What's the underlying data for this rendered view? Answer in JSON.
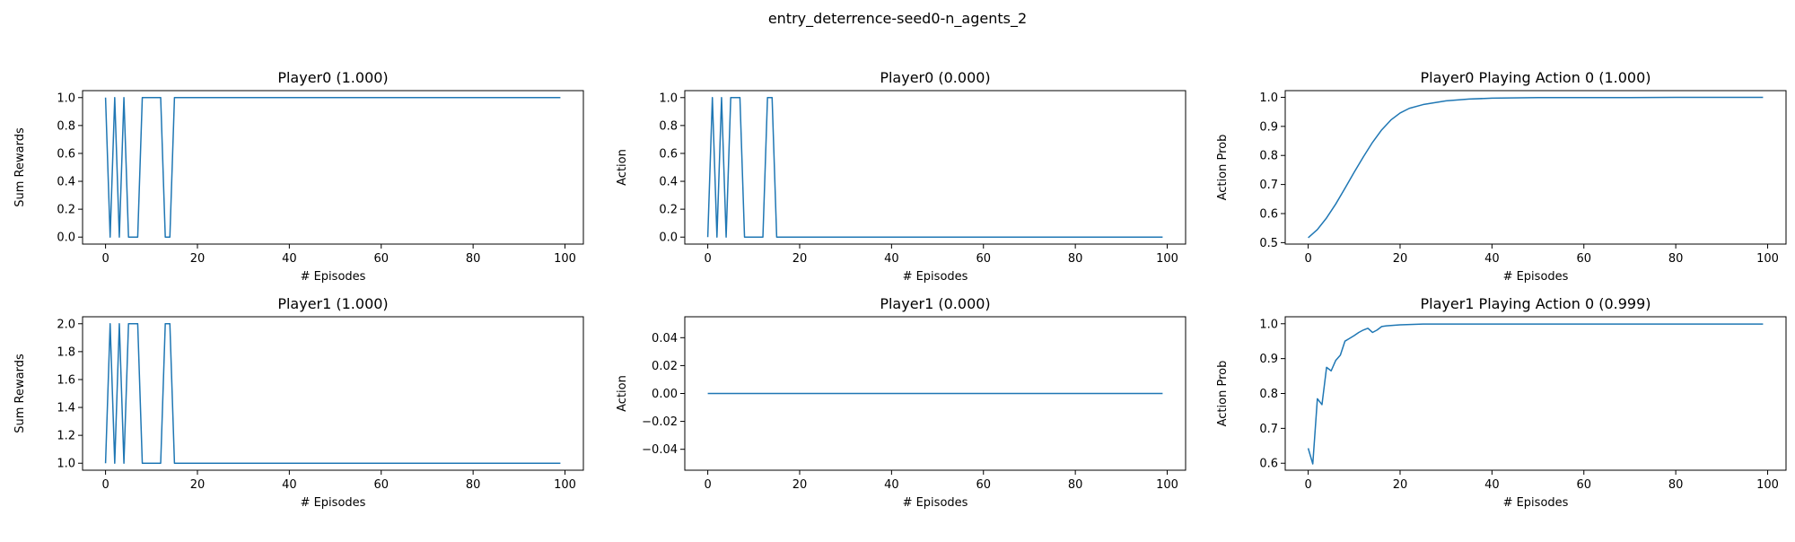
{
  "figure": {
    "title": "entry_deterrence-seed0-n_agents_2"
  },
  "colors": {
    "line": "#1f77b4",
    "axes": "#000000",
    "background": "#ffffff"
  },
  "chart_data": [
    {
      "type": "line",
      "title": "Player0 (1.000)",
      "xlabel": "# Episodes",
      "ylabel": "Sum Rewards",
      "xlim": [
        -5,
        104
      ],
      "ylim": [
        -0.05,
        1.05
      ],
      "xticks": [
        0,
        20,
        40,
        60,
        80,
        100
      ],
      "yticks": [
        0.0,
        0.2,
        0.4,
        0.6,
        0.8,
        1.0
      ],
      "ytick_labels": [
        "0.0",
        "0.2",
        "0.4",
        "0.6",
        "0.8",
        "1.0"
      ],
      "series": [
        {
          "x": [
            0,
            1,
            2,
            3,
            4,
            5,
            6,
            7,
            8,
            9,
            10,
            11,
            12,
            13,
            14,
            15,
            16,
            99
          ],
          "y": [
            1,
            0,
            1,
            0,
            1,
            0,
            0,
            0,
            1,
            1,
            1,
            1,
            1,
            0,
            0,
            1,
            1,
            1
          ]
        }
      ]
    },
    {
      "type": "line",
      "title": "Player0 (0.000)",
      "xlabel": "# Episodes",
      "ylabel": "Action",
      "xlim": [
        -5,
        104
      ],
      "ylim": [
        -0.05,
        1.05
      ],
      "xticks": [
        0,
        20,
        40,
        60,
        80,
        100
      ],
      "yticks": [
        0.0,
        0.2,
        0.4,
        0.6,
        0.8,
        1.0
      ],
      "ytick_labels": [
        "0.0",
        "0.2",
        "0.4",
        "0.6",
        "0.8",
        "1.0"
      ],
      "series": [
        {
          "x": [
            0,
            1,
            2,
            3,
            4,
            5,
            6,
            7,
            8,
            9,
            10,
            11,
            12,
            13,
            14,
            15,
            16,
            99
          ],
          "y": [
            0,
            1,
            0,
            1,
            0,
            1,
            1,
            1,
            0,
            0,
            0,
            0,
            0,
            1,
            1,
            0,
            0,
            0
          ]
        }
      ]
    },
    {
      "type": "line",
      "title": "Player0 Playing Action 0 (1.000)",
      "xlabel": "# Episodes",
      "ylabel": "Action Prob",
      "xlim": [
        -5,
        104
      ],
      "ylim": [
        0.495,
        1.023
      ],
      "xticks": [
        0,
        20,
        40,
        60,
        80,
        100
      ],
      "yticks": [
        0.5,
        0.6,
        0.7,
        0.8,
        0.9,
        1.0
      ],
      "ytick_labels": [
        "0.5",
        "0.6",
        "0.7",
        "0.8",
        "0.9",
        "1.0"
      ],
      "series": [
        {
          "x": [
            0,
            2,
            4,
            6,
            8,
            10,
            12,
            14,
            16,
            18,
            20,
            22,
            25,
            30,
            35,
            40,
            50,
            60,
            70,
            80,
            90,
            99
          ],
          "y": [
            0.517,
            0.545,
            0.585,
            0.633,
            0.687,
            0.742,
            0.795,
            0.845,
            0.888,
            0.922,
            0.946,
            0.962,
            0.975,
            0.988,
            0.994,
            0.997,
            0.999,
            0.999,
            0.999,
            1.0,
            1.0,
            1.0
          ]
        }
      ]
    },
    {
      "type": "line",
      "title": "Player1 (1.000)",
      "xlabel": "# Episodes",
      "ylabel": "Sum Rewards",
      "xlim": [
        -5,
        104
      ],
      "ylim": [
        0.95,
        2.05
      ],
      "xticks": [
        0,
        20,
        40,
        60,
        80,
        100
      ],
      "yticks": [
        1.0,
        1.2,
        1.4,
        1.6,
        1.8,
        2.0
      ],
      "ytick_labels": [
        "1.0",
        "1.2",
        "1.4",
        "1.6",
        "1.8",
        "2.0"
      ],
      "series": [
        {
          "x": [
            0,
            1,
            2,
            3,
            4,
            5,
            6,
            7,
            8,
            9,
            10,
            11,
            12,
            13,
            14,
            15,
            16,
            99
          ],
          "y": [
            1,
            2,
            1,
            2,
            1,
            2,
            2,
            2,
            1,
            1,
            1,
            1,
            1,
            2,
            2,
            1,
            1,
            1
          ]
        }
      ]
    },
    {
      "type": "line",
      "title": "Player1 (0.000)",
      "xlabel": "# Episodes",
      "ylabel": "Action",
      "xlim": [
        -5,
        104
      ],
      "ylim": [
        -0.055,
        0.055
      ],
      "xticks": [
        0,
        20,
        40,
        60,
        80,
        100
      ],
      "yticks": [
        -0.04,
        -0.02,
        0.0,
        0.02,
        0.04
      ],
      "ytick_labels": [
        "−0.04",
        "−0.02",
        "0.00",
        "0.02",
        "0.04"
      ],
      "series": [
        {
          "x": [
            0,
            99
          ],
          "y": [
            0,
            0
          ]
        }
      ]
    },
    {
      "type": "line",
      "title": "Player1 Playing Action 0 (0.999)",
      "xlabel": "# Episodes",
      "ylabel": "Action Prob",
      "xlim": [
        -5,
        104
      ],
      "ylim": [
        0.58,
        1.02
      ],
      "xticks": [
        0,
        20,
        40,
        60,
        80,
        100
      ],
      "yticks": [
        0.6,
        0.7,
        0.8,
        0.9,
        1.0
      ],
      "ytick_labels": [
        "0.6",
        "0.7",
        "0.8",
        "0.9",
        "1.0"
      ],
      "series": [
        {
          "x": [
            0,
            1,
            2,
            3,
            4,
            5,
            6,
            7,
            8,
            9,
            10,
            11,
            12,
            13,
            14,
            15,
            16,
            17,
            18,
            20,
            25,
            30,
            40,
            50,
            60,
            70,
            80,
            90,
            99
          ],
          "y": [
            0.643,
            0.598,
            0.785,
            0.768,
            0.875,
            0.865,
            0.895,
            0.91,
            0.95,
            0.958,
            0.966,
            0.975,
            0.982,
            0.987,
            0.975,
            0.982,
            0.992,
            0.994,
            0.995,
            0.997,
            0.999,
            0.999,
            0.999,
            0.999,
            0.999,
            0.999,
            0.999,
            0.999,
            0.999
          ]
        }
      ]
    }
  ]
}
